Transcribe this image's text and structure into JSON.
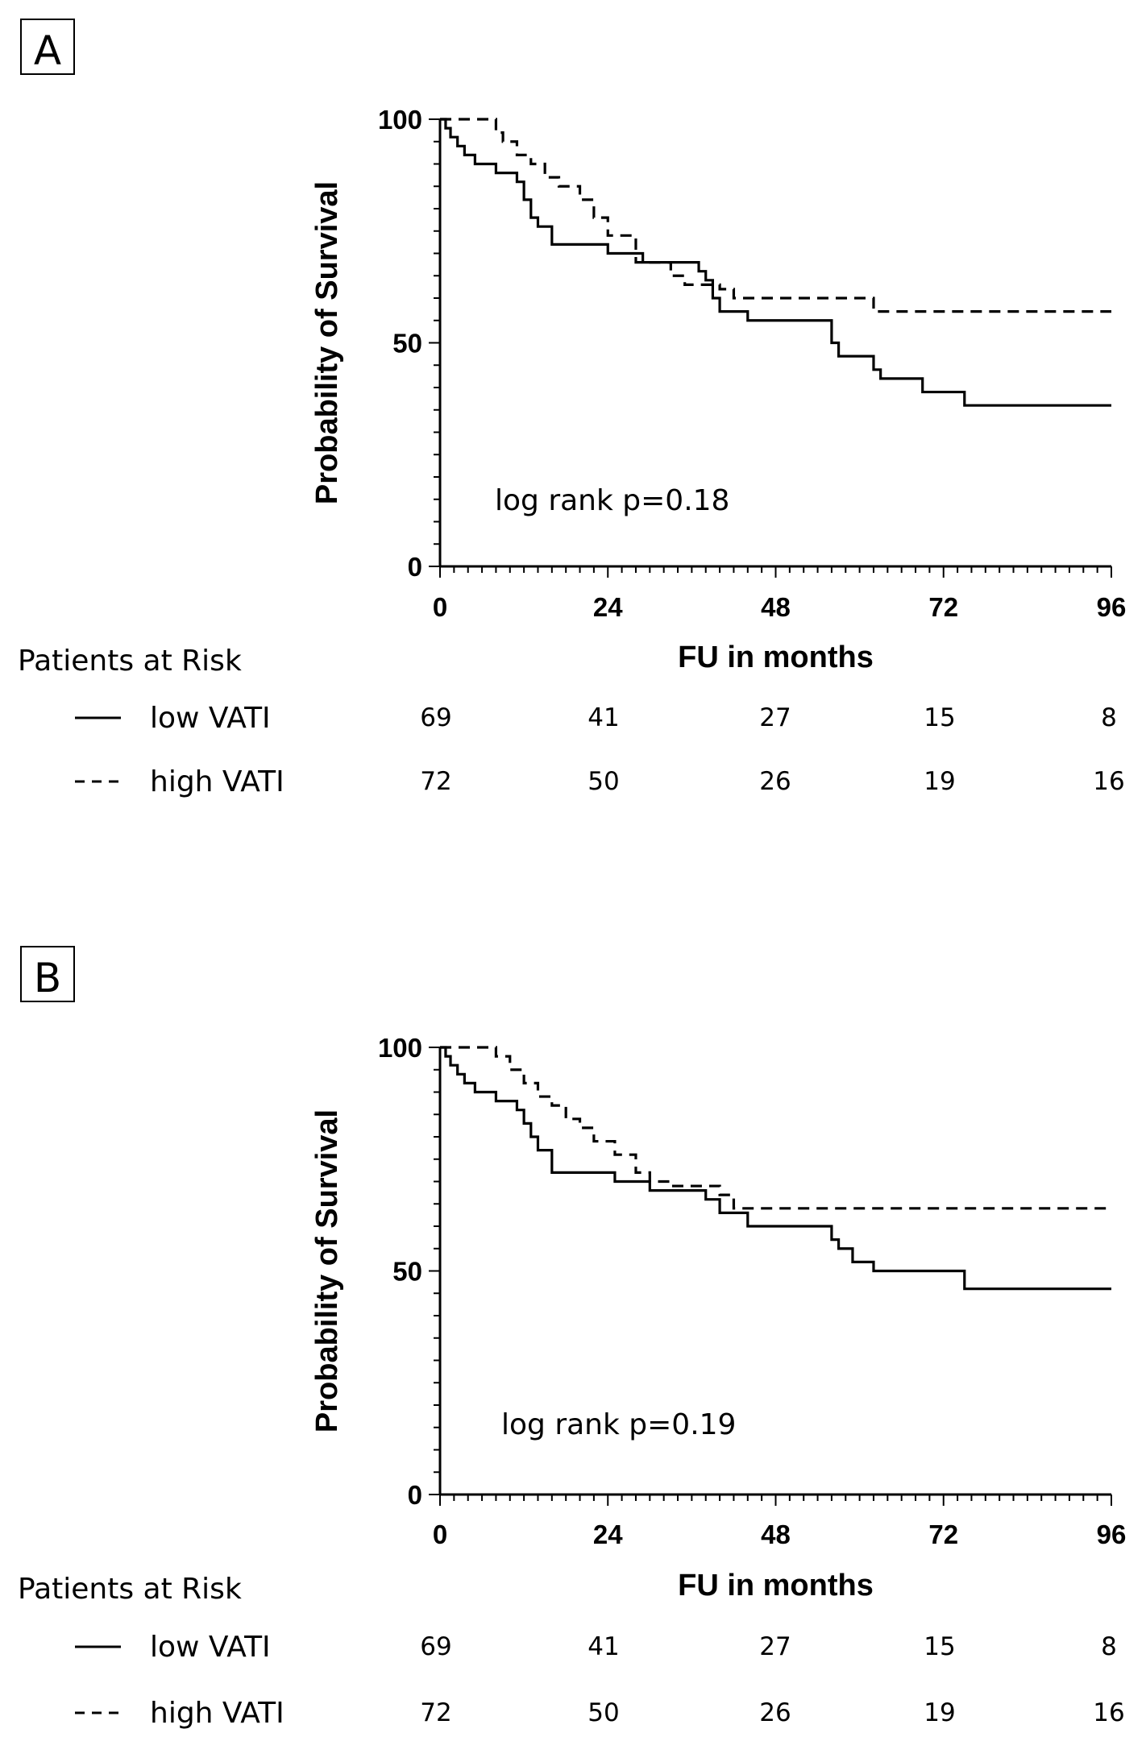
{
  "chart_data": [
    {
      "type": "line",
      "panel_label": "A",
      "title": "",
      "xlabel": "FU in months",
      "ylabel": "Probability of Survival",
      "xlim": [
        0,
        96
      ],
      "ylim": [
        0,
        100
      ],
      "x_ticks": [
        "0",
        "24",
        "48",
        "72",
        "96"
      ],
      "y_ticks": [
        "0",
        "50",
        "100"
      ],
      "annotation": "log rank p=0.18",
      "series": [
        {
          "name": "low VATI",
          "style": "solid",
          "x": [
            0,
            0.8,
            1.5,
            2.5,
            3.5,
            5,
            8,
            11,
            12,
            13,
            14,
            16,
            24,
            29,
            37,
            38,
            39,
            40,
            44,
            50,
            56,
            57,
            58,
            62,
            63,
            69,
            75,
            96
          ],
          "y": [
            100,
            98,
            96,
            94,
            92,
            90,
            88,
            86,
            82,
            78,
            76,
            72,
            70,
            68,
            66,
            64,
            60,
            57,
            55,
            55,
            50,
            47,
            47,
            44,
            42,
            39,
            36,
            36
          ]
        },
        {
          "name": "high VATI",
          "style": "dashed",
          "x": [
            0,
            7,
            8,
            9,
            11,
            13,
            15,
            17,
            20,
            22,
            24,
            28,
            33,
            35,
            40,
            42,
            62,
            96
          ],
          "y": [
            100,
            100,
            97,
            95,
            92,
            90,
            87,
            85,
            82,
            78,
            74,
            68,
            65,
            63,
            62,
            60,
            57,
            57
          ]
        }
      ],
      "risk_table": {
        "heading": "Patients at Risk",
        "rows": [
          {
            "label": "low VATI",
            "style": "solid",
            "values": [
              "69",
              "41",
              "27",
              "15",
              "8"
            ]
          },
          {
            "label": "high VATI",
            "style": "dashed",
            "values": [
              "72",
              "50",
              "26",
              "19",
              "16"
            ]
          }
        ]
      }
    },
    {
      "type": "line",
      "panel_label": "B",
      "title": "",
      "xlabel": "FU in months",
      "ylabel": "Probability of Survival",
      "xlim": [
        0,
        96
      ],
      "ylim": [
        0,
        100
      ],
      "x_ticks": [
        "0",
        "24",
        "48",
        "72",
        "96"
      ],
      "y_ticks": [
        "0",
        "50",
        "100"
      ],
      "annotation": "log rank p=0.19",
      "series": [
        {
          "name": "low VATI",
          "style": "solid",
          "x": [
            0,
            0.8,
            1.5,
            2.5,
            3.5,
            5,
            8,
            11,
            12,
            13,
            14,
            16,
            25,
            30,
            38,
            40,
            44,
            56,
            57,
            59,
            62,
            75,
            96
          ],
          "y": [
            100,
            98,
            96,
            94,
            92,
            90,
            88,
            86,
            83,
            80,
            77,
            72,
            70,
            68,
            66,
            63,
            60,
            57,
            55,
            52,
            50,
            46,
            46
          ]
        },
        {
          "name": "high VATI",
          "style": "dashed",
          "x": [
            0,
            7,
            8,
            10,
            12,
            14,
            16,
            18,
            20,
            22,
            25,
            28,
            30,
            33,
            40,
            42,
            96
          ],
          "y": [
            100,
            100,
            98,
            95,
            92,
            89,
            87,
            84,
            82,
            79,
            76,
            72,
            70,
            69,
            67,
            64,
            64
          ]
        }
      ],
      "risk_table": {
        "heading": "Patients at Risk",
        "rows": [
          {
            "label": "low VATI",
            "style": "solid",
            "values": [
              "69",
              "41",
              "27",
              "15",
              "8"
            ]
          },
          {
            "label": "high VATI",
            "style": "dashed",
            "values": [
              "72",
              "50",
              "26",
              "19",
              "16"
            ]
          }
        ]
      }
    }
  ]
}
